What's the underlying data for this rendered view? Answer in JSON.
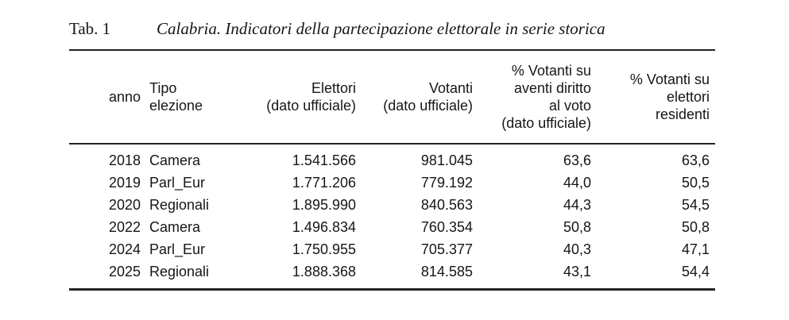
{
  "caption": {
    "label": "Tab. 1",
    "title": "Calabria. Indicatori della partecipazione elettorale in serie storica"
  },
  "table": {
    "headers": {
      "anno": "anno",
      "tipo": "Tipo\nelezione",
      "elettori": "Elettori\n(dato ufficiale)",
      "votanti": "Votanti\n(dato ufficiale)",
      "perc_aventi": "% Votanti su\naventi diritto\nal voto\n(dato ufficiale)",
      "perc_residenti": "% Votanti su\nelettori\nresidenti"
    },
    "rows": [
      [
        "2018",
        "Camera",
        "1.541.566",
        "981.045",
        "63,6",
        "63,6"
      ],
      [
        "2019",
        "Parl_Eur",
        "1.771.206",
        "779.192",
        "44,0",
        "50,5"
      ],
      [
        "2020",
        "Regionali",
        "1.895.990",
        "840.563",
        "44,3",
        "54,5"
      ],
      [
        "2022",
        "Camera",
        "1.496.834",
        "760.354",
        "50,8",
        "50,8"
      ],
      [
        "2024",
        "Parl_Eur",
        "1.750.955",
        "705.377",
        "40,3",
        "47,1"
      ],
      [
        "2025",
        "Regionali",
        "1.888.368",
        "814.585",
        "43,1",
        "54,4"
      ]
    ]
  },
  "colors": {
    "text": "#161616",
    "rule": "#232323",
    "background": "#ffffff"
  },
  "chart_data": {
    "type": "table",
    "title": "Calabria. Indicatori della partecipazione elettorale in serie storica",
    "columns": [
      "anno",
      "Tipo elezione",
      "Elettori (dato ufficiale)",
      "Votanti (dato ufficiale)",
      "% Votanti su aventi diritto al voto (dato ufficiale)",
      "% Votanti su elettori residenti"
    ],
    "rows": [
      [
        2018,
        "Camera",
        1541566,
        981045,
        63.6,
        63.6
      ],
      [
        2019,
        "Parl_Eur",
        1771206,
        779192,
        44.0,
        50.5
      ],
      [
        2020,
        "Regionali",
        1895990,
        840563,
        44.3,
        54.5
      ],
      [
        2022,
        "Camera",
        1496834,
        760354,
        50.8,
        50.8
      ],
      [
        2024,
        "Parl_Eur",
        1750955,
        705377,
        40.3,
        47.1
      ],
      [
        2025,
        "Regionali",
        1888368,
        814585,
        43.1,
        54.4
      ]
    ]
  }
}
